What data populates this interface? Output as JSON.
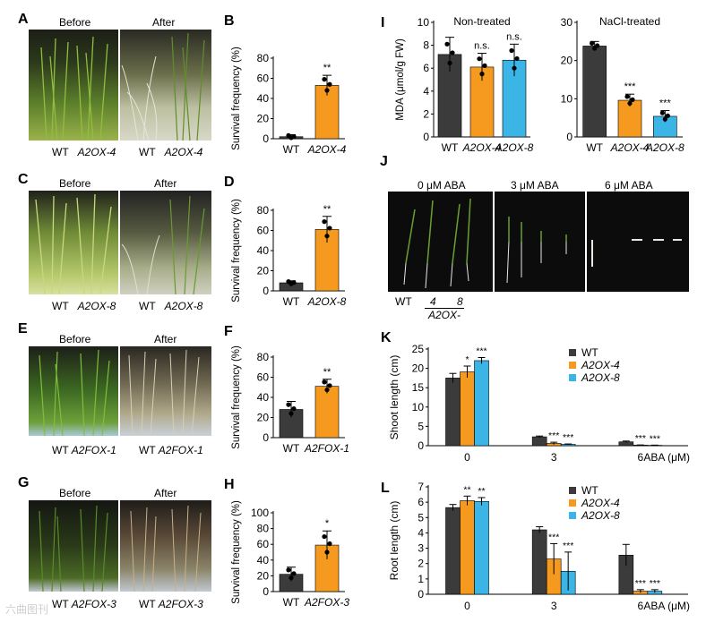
{
  "panels": {
    "A": {
      "label": "A",
      "before": "Before",
      "after": "After",
      "caption_left": "WT",
      "caption_left2": "A2OX-4",
      "caption_right": "WT",
      "caption_right2": "A2OX-4"
    },
    "C": {
      "label": "C",
      "before": "Before",
      "after": "After",
      "caption_left": "WT",
      "caption_left2": "A2OX-8",
      "caption_right": "WT",
      "caption_right2": "A2OX-8"
    },
    "E": {
      "label": "E",
      "before": "Before",
      "after": "After",
      "caption_left": "WT",
      "caption_left2": "A2FOX-1",
      "caption_right": "WT",
      "caption_right2": "A2FOX-1"
    },
    "G": {
      "label": "G",
      "before": "Before",
      "after": "After",
      "caption_left": "WT",
      "caption_left2": "A2FOX-3",
      "caption_right": "WT",
      "caption_right2": "A2FOX-3"
    },
    "J": {
      "label": "J",
      "conds": [
        "0 μM ABA",
        "3 μM ABA",
        "6 μM ABA"
      ],
      "wt": "WT",
      "l4": "4",
      "l8": "8",
      "group": "A2OX-"
    }
  },
  "colors": {
    "wt": "#3b3b3b",
    "a2ox4": "#f59a1f",
    "a2ox8": "#3bb4e6"
  },
  "chart_data": [
    {
      "id": "B",
      "type": "bar",
      "label": "B",
      "ylabel": "Survival frequency (%)",
      "categories": [
        "WT",
        "A2OX-4"
      ],
      "values": [
        2,
        53
      ],
      "errors": [
        2,
        10
      ],
      "ylim": [
        0,
        80
      ],
      "ticks": [
        0,
        20,
        40,
        60,
        80
      ],
      "sig": [
        "",
        "**"
      ]
    },
    {
      "id": "D",
      "type": "bar",
      "label": "D",
      "ylabel": "Survival frequency (%)",
      "categories": [
        "WT",
        "A2OX-8"
      ],
      "values": [
        8,
        61
      ],
      "errors": [
        2,
        13
      ],
      "ylim": [
        0,
        80
      ],
      "ticks": [
        0,
        20,
        40,
        60,
        80
      ],
      "sig": [
        "",
        "**"
      ]
    },
    {
      "id": "F",
      "type": "bar",
      "label": "F",
      "ylabel": "Survival frequency (%)",
      "categories": [
        "WT",
        "A2FOX-1"
      ],
      "values": [
        28,
        51
      ],
      "errors": [
        8,
        7
      ],
      "ylim": [
        0,
        80
      ],
      "ticks": [
        0,
        20,
        40,
        60,
        80
      ],
      "sig": [
        "",
        "**"
      ]
    },
    {
      "id": "H",
      "type": "bar",
      "label": "H",
      "ylabel": "Survival frequency (%)",
      "categories": [
        "WT",
        "A2FOX-3"
      ],
      "values": [
        22,
        59
      ],
      "errors": [
        9,
        18
      ],
      "ylim": [
        0,
        100
      ],
      "ticks": [
        0,
        20,
        40,
        60,
        80,
        100
      ],
      "sig": [
        "",
        "*"
      ]
    },
    {
      "id": "I1",
      "type": "bar",
      "label": "I",
      "title": "Non-treated",
      "ylabel": "MDA (μmol/g FW)",
      "categories": [
        "WT",
        "A2OX-4",
        "A2OX-8"
      ],
      "values": [
        7.2,
        6.1,
        6.7
      ],
      "errors": [
        1.5,
        1.2,
        1.4
      ],
      "ylim": [
        0,
        10
      ],
      "ticks": [
        0,
        2,
        4,
        6,
        8,
        10
      ],
      "sig": [
        "",
        "n.s.",
        "n.s."
      ]
    },
    {
      "id": "I2",
      "type": "bar",
      "label": "",
      "title": "NaCl-treated",
      "ylabel": "",
      "categories": [
        "WT",
        "A2OX-4",
        "A2OX-8"
      ],
      "values": [
        23.8,
        9.6,
        5.4
      ],
      "errors": [
        1.2,
        1.6,
        1.5
      ],
      "ylim": [
        0,
        30
      ],
      "ticks": [
        0,
        10,
        20,
        30
      ],
      "sig": [
        "",
        "***",
        "***"
      ]
    },
    {
      "id": "K",
      "type": "bar",
      "label": "K",
      "ylabel": "Shoot length (cm)",
      "xlabel": "ABA (μM)",
      "categories": [
        "0",
        "3",
        "6"
      ],
      "series": [
        {
          "name": "WT",
          "values": [
            17.5,
            2.3,
            1.0
          ],
          "errors": [
            1.2,
            0.2,
            0.2
          ],
          "sig": [
            "",
            "",
            ""
          ]
        },
        {
          "name": "A2OX-4",
          "values": [
            19.1,
            0.6,
            0.15
          ],
          "errors": [
            1.5,
            0.3,
            0.05
          ],
          "sig": [
            "*",
            "***",
            "***"
          ]
        },
        {
          "name": "A2OX-8",
          "values": [
            22.0,
            0.35,
            0.1
          ],
          "errors": [
            0.8,
            0.1,
            0.05
          ],
          "sig": [
            "***",
            "***",
            "***"
          ]
        }
      ],
      "ylim": [
        0,
        25
      ],
      "ticks": [
        0,
        5,
        10,
        15,
        20,
        25
      ]
    },
    {
      "id": "L",
      "type": "bar",
      "label": "L",
      "ylabel": "Root length (cm)",
      "xlabel": "ABA (μM)",
      "categories": [
        "0",
        "3",
        "6"
      ],
      "series": [
        {
          "name": "WT",
          "values": [
            5.65,
            4.2,
            2.55
          ],
          "errors": [
            0.2,
            0.2,
            0.7
          ],
          "sig": [
            "",
            "",
            ""
          ]
        },
        {
          "name": "A2OX-4",
          "values": [
            6.1,
            2.3,
            0.2
          ],
          "errors": [
            0.3,
            1.0,
            0.1
          ],
          "sig": [
            "**",
            "***",
            "***"
          ]
        },
        {
          "name": "A2OX-8",
          "values": [
            6.05,
            1.5,
            0.2
          ],
          "errors": [
            0.25,
            1.25,
            0.1
          ],
          "sig": [
            "**",
            "***",
            "***"
          ]
        }
      ],
      "ylim": [
        0,
        7
      ],
      "ticks": [
        0,
        1,
        2,
        3,
        4,
        5,
        6,
        7
      ]
    }
  ],
  "watermark": "六曲图刊"
}
